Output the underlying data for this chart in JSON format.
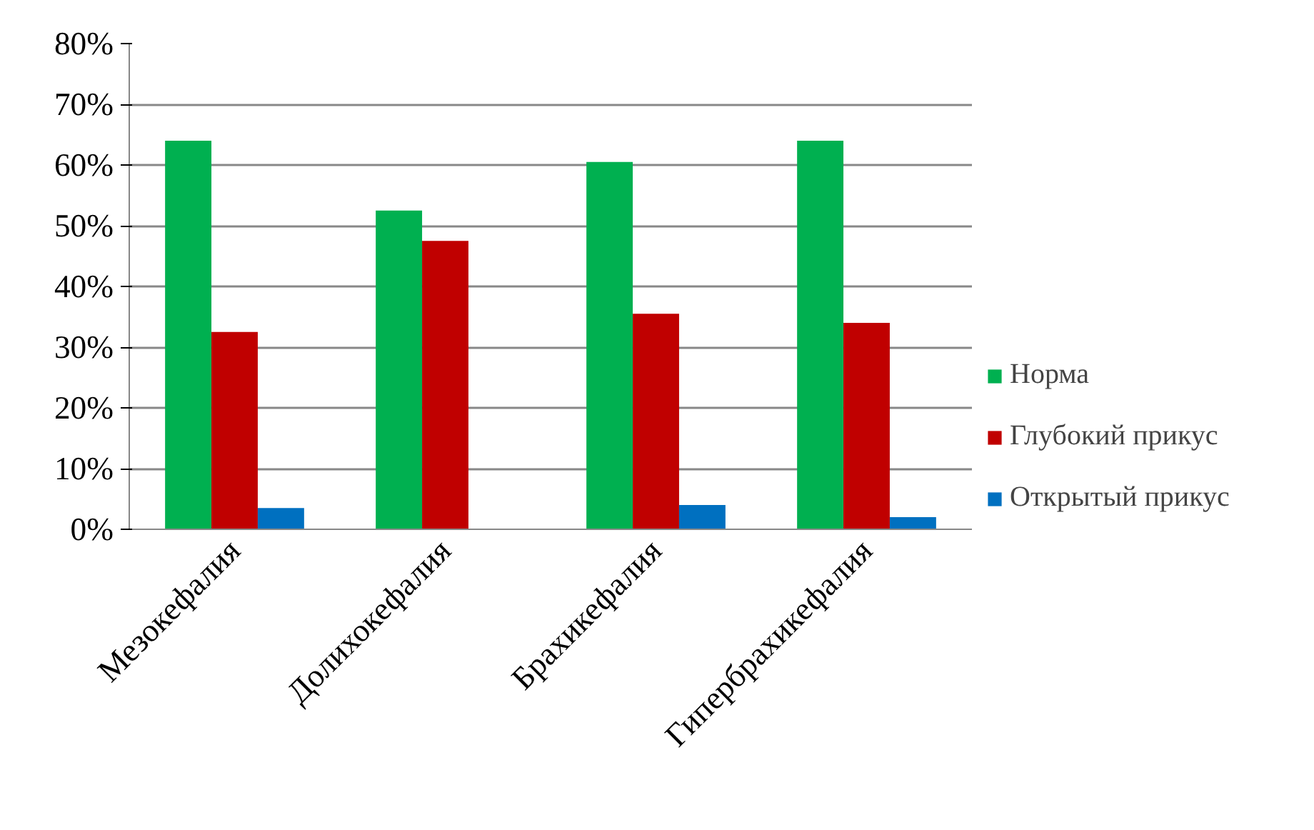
{
  "chart_data": {
    "type": "bar",
    "categories": [
      "Мезокефалия",
      "Долихокефалия",
      "Брахикефалия",
      "Гипербрахикефалия"
    ],
    "series": [
      {
        "name": "Норма",
        "color": "#00b050",
        "values": [
          64,
          52.5,
          60.5,
          64
        ]
      },
      {
        "name": "Глубокий прикус",
        "color": "#c00000",
        "values": [
          32.5,
          47.5,
          35.5,
          34
        ]
      },
      {
        "name": "Открытый прикус",
        "color": "#0070c0",
        "values": [
          3.5,
          0,
          4,
          2
        ]
      }
    ],
    "ylim": [
      0,
      80
    ],
    "yticks": [
      {
        "value": 0,
        "label": "0%"
      },
      {
        "value": 10,
        "label": "10%"
      },
      {
        "value": 20,
        "label": "20%"
      },
      {
        "value": 30,
        "label": "30%"
      },
      {
        "value": 40,
        "label": "40%"
      },
      {
        "value": 50,
        "label": "50%"
      },
      {
        "value": 60,
        "label": "60%"
      },
      {
        "value": 70,
        "label": "70%"
      },
      {
        "value": 80,
        "label": "80%"
      }
    ],
    "grid": "y",
    "legend": "bottom right"
  }
}
